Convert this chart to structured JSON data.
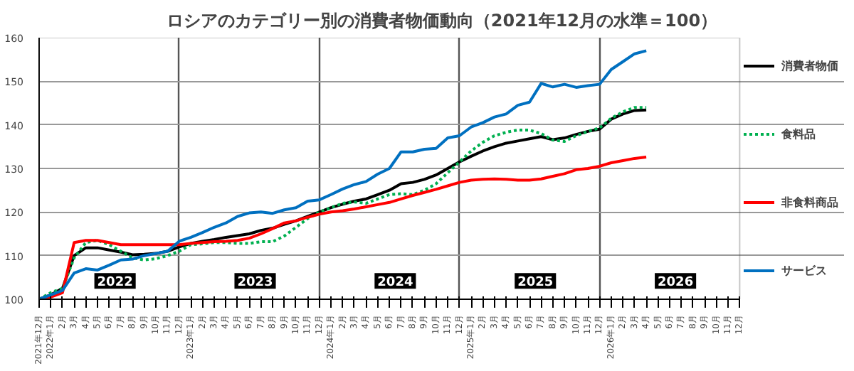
{
  "chart_data": {
    "type": "line",
    "title": "ロシアのカテゴリー別の消費者物価動向（2021年12月の水準＝100）",
    "categories": [
      "2021年12月",
      "2022年1月",
      "2月",
      "3月",
      "4月",
      "5月",
      "6月",
      "7月",
      "8月",
      "9月",
      "10月",
      "11月",
      "12月",
      "2023年1月",
      "2月",
      "3月",
      "4月",
      "5月",
      "6月",
      "7月",
      "8月",
      "9月",
      "10月",
      "11月",
      "12月",
      "2024年1月",
      "2月",
      "3月",
      "4月",
      "5月",
      "6月",
      "7月",
      "8月",
      "9月",
      "10月",
      "11月",
      "12月",
      "2025年1月",
      "2月",
      "3月",
      "4月",
      "5月",
      "6月",
      "7月",
      "8月",
      "9月",
      "10月",
      "11月",
      "12月",
      "2026年1月",
      "2月",
      "3月",
      "4月",
      "5月",
      "6月",
      "7月",
      "8月",
      "9月",
      "10月",
      "11月",
      "12月"
    ],
    "series": [
      {
        "name": "消費者物価",
        "color": "#000000",
        "line_style": "solid",
        "values": [
          100,
          101,
          102.5,
          110,
          111.8,
          111.8,
          111.3,
          110.8,
          110.2,
          110.3,
          110.5,
          111,
          112,
          112.8,
          113.3,
          113.7,
          114.2,
          114.6,
          115,
          115.8,
          116.3,
          117.2,
          118,
          119,
          120,
          121,
          121.8,
          122.5,
          123,
          124,
          125,
          126.5,
          126.8,
          127.5,
          128.5,
          130,
          131.5,
          132.8,
          134,
          135,
          135.8,
          136.3,
          136.8,
          137.3,
          136.6,
          137,
          137.8,
          138.5,
          139,
          141.3,
          142.5,
          143.3,
          143.4,
          null,
          null,
          null,
          null,
          null,
          null,
          null,
          null
        ]
      },
      {
        "name": "食料品",
        "color": "#00b050",
        "line_style": "dotted",
        "values": [
          100,
          101.5,
          102.5,
          109.5,
          113,
          113.5,
          112.5,
          111,
          109.5,
          109,
          109.3,
          110,
          111,
          112.5,
          112.7,
          113,
          113,
          112.8,
          112.8,
          113.2,
          113.2,
          114.5,
          116.5,
          118.5,
          120,
          121,
          122,
          122.3,
          122,
          123,
          124,
          124.2,
          124,
          125,
          126.5,
          129,
          131.5,
          134,
          136,
          137.5,
          138.3,
          138.8,
          138.8,
          138,
          136.5,
          136.2,
          137.5,
          138.5,
          139.3,
          141.5,
          143,
          144,
          144,
          null,
          null,
          null,
          null,
          null,
          null,
          null,
          null
        ]
      },
      {
        "name": "非食料商品",
        "color": "#ff0000",
        "line_style": "solid",
        "values": [
          100,
          100.5,
          101.5,
          113,
          113.5,
          113.5,
          113,
          112.5,
          112.5,
          112.5,
          112.5,
          112.5,
          112.5,
          112.8,
          113,
          113.2,
          113.3,
          113.5,
          114,
          115,
          116.2,
          117.5,
          118,
          118.8,
          119.5,
          120,
          120.3,
          120.7,
          121.2,
          121.7,
          122.2,
          123,
          123.8,
          124.5,
          125.2,
          126,
          126.8,
          127.3,
          127.5,
          127.6,
          127.5,
          127.3,
          127.3,
          127.6,
          128.2,
          128.8,
          129.7,
          130,
          130.5,
          131.3,
          131.8,
          132.3,
          132.6,
          null,
          null,
          null,
          null,
          null,
          null,
          null,
          null
        ]
      },
      {
        "name": "サービス",
        "color": "#0070c0",
        "line_style": "solid",
        "values": [
          100,
          101,
          102,
          106,
          107,
          106.7,
          107.8,
          109,
          109.2,
          110,
          110.5,
          111,
          113.3,
          114.2,
          115.3,
          116.5,
          117.5,
          119,
          119.8,
          120,
          119.7,
          120.5,
          121,
          122.5,
          122.8,
          124,
          125.3,
          126.3,
          127,
          128.7,
          130,
          133.8,
          133.8,
          134.4,
          134.6,
          137,
          137.5,
          139.5,
          140.5,
          141.8,
          142.5,
          144.5,
          145.2,
          149.5,
          148.7,
          149.3,
          148.6,
          149,
          149.3,
          152.7,
          154.5,
          156.3,
          157,
          null,
          null,
          null,
          null,
          null,
          null,
          null,
          null
        ]
      }
    ],
    "annotations": [
      "2022",
      "2023",
      "2024",
      "2025",
      "2026"
    ],
    "ylim": [
      100,
      160
    ],
    "yticks": [
      100,
      110,
      120,
      130,
      140,
      150,
      160
    ],
    "grid": true,
    "legend": "right",
    "marker": "none"
  }
}
